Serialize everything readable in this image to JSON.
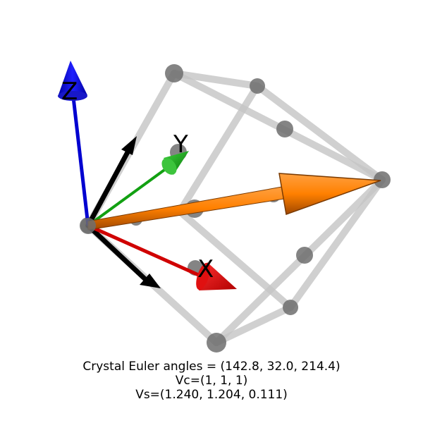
{
  "axes": {
    "x_label": "X",
    "y_label": "Y",
    "z_label": "Z"
  },
  "caption": {
    "euler": "Crystal Euler angles = (142.8, 32.0, 214.4)",
    "vc": "Vc=(1, 1, 1)",
    "vs": "Vs=(1.240, 1.204, 0.111)"
  },
  "colors": {
    "x_axis": "#e00000",
    "y_axis": "#12a012",
    "z_axis": "#0000e0",
    "crystal_axes": "#000000",
    "vector": "#ff8000",
    "lattice_edge": "#c8c8c8",
    "atom": "#707070"
  }
}
